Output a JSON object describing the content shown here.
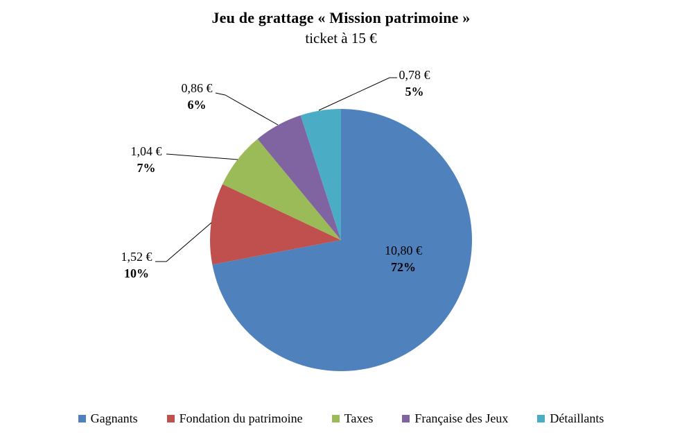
{
  "chart_data": {
    "type": "pie",
    "title": "Jeu de grattage « Mission patrimoine »",
    "subtitle": "ticket à 15 €",
    "currency": "€",
    "start_angle_deg": 0,
    "direction": "clockwise",
    "legend_position": "bottom",
    "slices": [
      {
        "label": "Gagnants",
        "value": 10.8,
        "value_label": "10,80 €",
        "pct": 72,
        "pct_label": "72%",
        "color": "#4F81BD"
      },
      {
        "label": "Fondation du patrimoine",
        "value": 1.52,
        "value_label": "1,52 €",
        "pct": 10,
        "pct_label": "10%",
        "color": "#C0504D"
      },
      {
        "label": "Taxes",
        "value": 1.04,
        "value_label": "1,04 €",
        "pct": 7,
        "pct_label": "7%",
        "color": "#9BBB59"
      },
      {
        "label": "Française des Jeux",
        "value": 0.86,
        "value_label": "0,86 €",
        "pct": 6,
        "pct_label": "6%",
        "color": "#8064A2"
      },
      {
        "label": "Détaillants",
        "value": 0.78,
        "value_label": "0,78 €",
        "pct": 5,
        "pct_label": "5%",
        "color": "#4BACC6"
      }
    ],
    "leader_line_color": "#000000",
    "text_color": "#000000",
    "background_color": "#FFFFFF"
  }
}
